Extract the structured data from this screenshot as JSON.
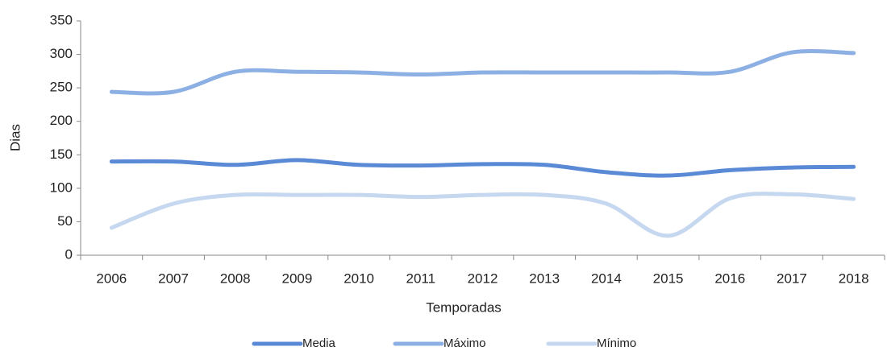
{
  "chart_data": {
    "type": "line",
    "x_label": "Temporadas",
    "y_label": "Dias",
    "categories": [
      "2006",
      "2007",
      "2008",
      "2009",
      "2010",
      "2011",
      "2012",
      "2013",
      "2014",
      "2015",
      "2016",
      "2017",
      "2018"
    ],
    "series": [
      {
        "name": "Media",
        "color": "#5a8ad6",
        "values": [
          140,
          140,
          135,
          142,
          135,
          134,
          136,
          135,
          124,
          119,
          127,
          131,
          132
        ]
      },
      {
        "name": "Máximo",
        "color": "#8db0e4",
        "values": [
          244,
          244,
          274,
          274,
          273,
          270,
          273,
          273,
          273,
          273,
          274,
          303,
          302
        ]
      },
      {
        "name": "Mínimo",
        "color": "#c6d7f0",
        "values": [
          41,
          77,
          90,
          90,
          90,
          87,
          90,
          90,
          77,
          29,
          85,
          91,
          84
        ]
      }
    ],
    "ylim": [
      0,
      350
    ],
    "yticks": [
      0,
      50,
      100,
      150,
      200,
      250,
      300,
      350
    ],
    "grid": false,
    "legend": "bottom"
  }
}
